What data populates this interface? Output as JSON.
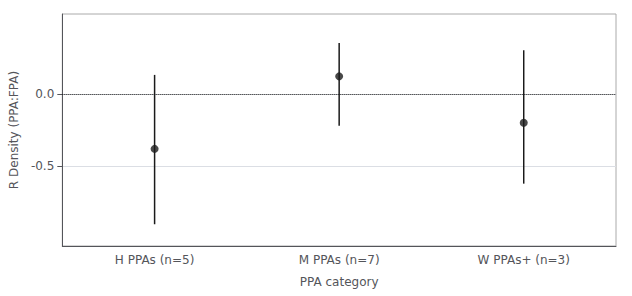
{
  "chart_data": {
    "type": "errorbar",
    "categories": [
      "H PPAs (n=5)",
      "M PPAs (n=7)",
      "W PPAs+ (n=3)"
    ],
    "values": [
      -0.38,
      0.12,
      -0.2
    ],
    "ci_lower": [
      -0.9,
      -0.22,
      -0.62
    ],
    "ci_upper": [
      0.13,
      0.35,
      0.3
    ],
    "xlabel": "PPA category",
    "ylabel": "R Density (PPA:FPA)",
    "ylim": [
      -1.05,
      0.55
    ],
    "yticks": [
      {
        "value": 0.0,
        "label": "0.0"
      },
      {
        "value": -0.5,
        "label": "-0.5"
      }
    ],
    "hline": 0.0,
    "color": "#1a1a1a",
    "grid": true
  }
}
